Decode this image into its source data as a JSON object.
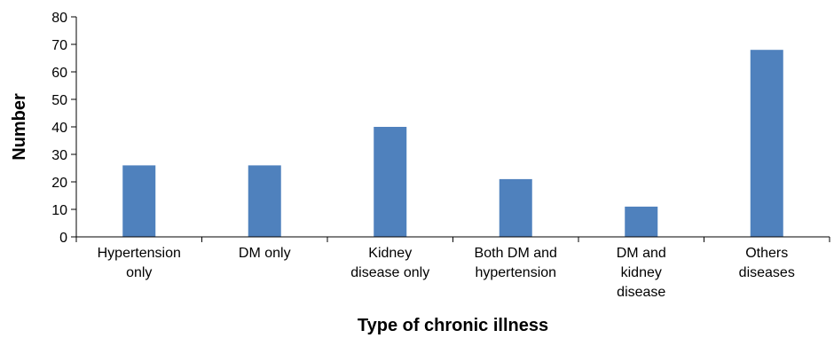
{
  "chart_data": {
    "type": "bar",
    "categories": [
      [
        "Hypertension",
        "only"
      ],
      [
        "DM only"
      ],
      [
        "Kidney",
        "disease only"
      ],
      [
        "Both DM and",
        "hypertension"
      ],
      [
        "DM and",
        "kidney",
        "disease"
      ],
      [
        "Others",
        "diseases"
      ]
    ],
    "values": [
      26,
      26,
      40,
      21,
      11,
      68
    ],
    "xlabel": "Type of chronic illness",
    "ylabel": "Number",
    "ylim": [
      0,
      80
    ],
    "yticks": [
      0,
      10,
      20,
      30,
      40,
      50,
      60,
      70,
      80
    ],
    "grid": false,
    "bar_color": "#4f81bd"
  }
}
